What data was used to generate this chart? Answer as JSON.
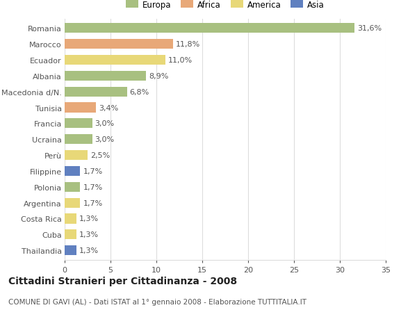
{
  "countries": [
    "Romania",
    "Marocco",
    "Ecuador",
    "Albania",
    "Macedonia d/N.",
    "Tunisia",
    "Francia",
    "Ucraina",
    "Perù",
    "Filippine",
    "Polonia",
    "Argentina",
    "Costa Rica",
    "Cuba",
    "Thailandia"
  ],
  "values": [
    31.6,
    11.8,
    11.0,
    8.9,
    6.8,
    3.4,
    3.0,
    3.0,
    2.5,
    1.7,
    1.7,
    1.7,
    1.3,
    1.3,
    1.3
  ],
  "labels": [
    "31,6%",
    "11,8%",
    "11,0%",
    "8,9%",
    "6,8%",
    "3,4%",
    "3,0%",
    "3,0%",
    "2,5%",
    "1,7%",
    "1,7%",
    "1,7%",
    "1,3%",
    "1,3%",
    "1,3%"
  ],
  "continents": [
    "Europa",
    "Africa",
    "America",
    "Europa",
    "Europa",
    "Africa",
    "Europa",
    "Europa",
    "America",
    "Asia",
    "Europa",
    "America",
    "America",
    "America",
    "Asia"
  ],
  "colors": {
    "Europa": "#a8c080",
    "Africa": "#e8a878",
    "America": "#e8d878",
    "Asia": "#6080c0"
  },
  "xlim": [
    0,
    35
  ],
  "xticks": [
    0,
    5,
    10,
    15,
    20,
    25,
    30,
    35
  ],
  "title": "Cittadini Stranieri per Cittadinanza - 2008",
  "subtitle": "COMUNE DI GAVI (AL) - Dati ISTAT al 1° gennaio 2008 - Elaborazione TUTTITALIA.IT",
  "background_color": "#ffffff",
  "grid_color": "#dddddd",
  "bar_height": 0.62,
  "title_fontsize": 10,
  "subtitle_fontsize": 7.5,
  "label_fontsize": 8,
  "tick_fontsize": 8,
  "legend_fontsize": 8.5
}
